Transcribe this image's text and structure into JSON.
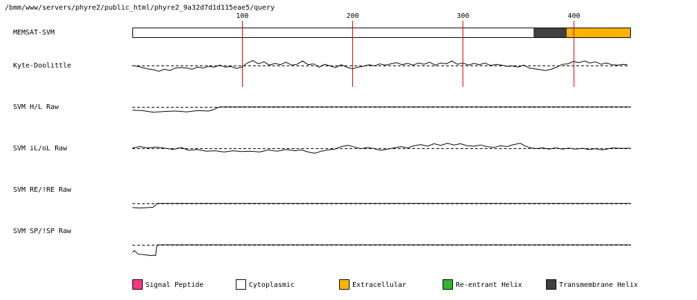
{
  "header": {
    "path": "/bmm/www/servers/phyre2/public_html/phyre2_9a32d7d1d115eae5/query"
  },
  "chart_data": {
    "type": "line",
    "x_axis": {
      "min": 1,
      "max": 452,
      "ticks": [
        100,
        200,
        300,
        400
      ],
      "tick_labels": [
        "100",
        "200",
        "300",
        "400"
      ]
    },
    "tracks": [
      {
        "label": "MEMSAT-SVM",
        "kind": "segments",
        "segments": [
          {
            "start": 1,
            "end": 364,
            "class": "Cytoplasmic"
          },
          {
            "start": 364,
            "end": 394,
            "class": "Transmembrane Helix"
          },
          {
            "start": 394,
            "end": 452,
            "class": "Extracellular"
          }
        ]
      },
      {
        "label": "Kyte-Doolittle",
        "kind": "profile",
        "profile": [
          [
            1,
            0
          ],
          [
            6,
            -0.1
          ],
          [
            10,
            -0.25
          ],
          [
            15,
            -0.4
          ],
          [
            20,
            -0.5
          ],
          [
            25,
            -0.7
          ],
          [
            30,
            -0.45
          ],
          [
            35,
            -0.6
          ],
          [
            40,
            -0.3
          ],
          [
            45,
            -0.25
          ],
          [
            50,
            -0.3
          ],
          [
            55,
            -0.45
          ],
          [
            60,
            -0.2
          ],
          [
            65,
            -0.3
          ],
          [
            70,
            -0.1
          ],
          [
            75,
            -0.2
          ],
          [
            80,
            0.05
          ],
          [
            85,
            -0.2
          ],
          [
            90,
            -0.1
          ],
          [
            95,
            -0.35
          ],
          [
            100,
            -0.2
          ],
          [
            105,
            0.3
          ],
          [
            110,
            0.6
          ],
          [
            115,
            0.2
          ],
          [
            120,
            0.45
          ],
          [
            125,
            0.05
          ],
          [
            130,
            0.25
          ],
          [
            135,
            0.1
          ],
          [
            140,
            0.4
          ],
          [
            145,
            0.05
          ],
          [
            150,
            0.15
          ],
          [
            155,
            0.55
          ],
          [
            160,
            0.1
          ],
          [
            165,
            0.2
          ],
          [
            170,
            -0.2
          ],
          [
            175,
            0.15
          ],
          [
            180,
            -0.05
          ],
          [
            185,
            -0.25
          ],
          [
            190,
            0.1
          ],
          [
            195,
            -0.2
          ],
          [
            200,
            -0.4
          ],
          [
            205,
            -0.2
          ],
          [
            210,
            -0.1
          ],
          [
            215,
            0.1
          ],
          [
            220,
            -0.05
          ],
          [
            225,
            0.2
          ],
          [
            230,
            0.05
          ],
          [
            235,
            0.2
          ],
          [
            240,
            0.35
          ],
          [
            245,
            0.1
          ],
          [
            250,
            0.25
          ],
          [
            255,
            0.05
          ],
          [
            260,
            0.3
          ],
          [
            265,
            0.15
          ],
          [
            270,
            0.4
          ],
          [
            275,
            0.05
          ],
          [
            280,
            0.3
          ],
          [
            285,
            0.2
          ],
          [
            290,
            0.55
          ],
          [
            295,
            0.15
          ],
          [
            300,
            0.3
          ],
          [
            305,
            0.05
          ],
          [
            310,
            0.25
          ],
          [
            315,
            0.1
          ],
          [
            320,
            0.3
          ],
          [
            325,
            0
          ],
          [
            330,
            0.15
          ],
          [
            335,
            0.05
          ],
          [
            340,
            -0.1
          ],
          [
            345,
            -0.05
          ],
          [
            350,
            -0.2
          ],
          [
            355,
            0.05
          ],
          [
            360,
            -0.3
          ],
          [
            365,
            -0.4
          ],
          [
            370,
            -0.5
          ],
          [
            375,
            -0.6
          ],
          [
            380,
            -0.45
          ],
          [
            385,
            -0.2
          ],
          [
            390,
            0.15
          ],
          [
            395,
            0.2
          ],
          [
            400,
            0.5
          ],
          [
            405,
            0.35
          ],
          [
            410,
            0.55
          ],
          [
            415,
            0.3
          ],
          [
            420,
            0.45
          ],
          [
            425,
            0.15
          ],
          [
            430,
            0.3
          ],
          [
            435,
            0.1
          ],
          [
            440,
            0.05
          ],
          [
            445,
            0.15
          ],
          [
            449,
            0.1
          ]
        ]
      },
      {
        "label": "SVM H/L Raw",
        "kind": "profile",
        "profile": [
          [
            1,
            -0.4
          ],
          [
            10,
            -0.45
          ],
          [
            20,
            -0.65
          ],
          [
            30,
            -0.55
          ],
          [
            40,
            -0.5
          ],
          [
            50,
            -0.6
          ],
          [
            60,
            -0.45
          ],
          [
            70,
            -0.5
          ],
          [
            75,
            -0.3
          ],
          [
            78,
            -0.1
          ],
          [
            80,
            0
          ],
          [
            452,
            0
          ]
        ]
      },
      {
        "label": "SVM iL/oL Raw",
        "kind": "profile",
        "profile": [
          [
            1,
            0.05
          ],
          [
            8,
            0.2
          ],
          [
            15,
            0.05
          ],
          [
            22,
            0.15
          ],
          [
            30,
            0.02
          ],
          [
            38,
            -0.15
          ],
          [
            45,
            0.1
          ],
          [
            52,
            -0.25
          ],
          [
            60,
            -0.15
          ],
          [
            68,
            -0.35
          ],
          [
            76,
            -0.3
          ],
          [
            84,
            -0.45
          ],
          [
            92,
            -0.3
          ],
          [
            100,
            -0.4
          ],
          [
            108,
            -0.35
          ],
          [
            116,
            -0.45
          ],
          [
            124,
            -0.2
          ],
          [
            132,
            -0.35
          ],
          [
            140,
            -0.15
          ],
          [
            148,
            -0.3
          ],
          [
            154,
            -0.2
          ],
          [
            160,
            -0.45
          ],
          [
            166,
            -0.6
          ],
          [
            172,
            -0.35
          ],
          [
            178,
            -0.2
          ],
          [
            184,
            -0.1
          ],
          [
            190,
            0.2
          ],
          [
            196,
            0.35
          ],
          [
            202,
            0.15
          ],
          [
            208,
            -0.05
          ],
          [
            214,
            0.1
          ],
          [
            220,
            -0.05
          ],
          [
            226,
            -0.25
          ],
          [
            232,
            -0.1
          ],
          [
            238,
            0.05
          ],
          [
            244,
            0.2
          ],
          [
            250,
            0.05
          ],
          [
            256,
            0.3
          ],
          [
            262,
            0.45
          ],
          [
            268,
            0.25
          ],
          [
            274,
            0.55
          ],
          [
            280,
            0.35
          ],
          [
            286,
            0.6
          ],
          [
            292,
            0.4
          ],
          [
            298,
            0.55
          ],
          [
            304,
            0.3
          ],
          [
            310,
            0.25
          ],
          [
            316,
            0.4
          ],
          [
            322,
            0.2
          ],
          [
            328,
            0.1
          ],
          [
            334,
            0.3
          ],
          [
            340,
            0.2
          ],
          [
            346,
            0.45
          ],
          [
            352,
            0.6
          ],
          [
            356,
            0.3
          ],
          [
            360,
            0.1
          ],
          [
            366,
            -0.05
          ],
          [
            372,
            0.05
          ],
          [
            378,
            -0.1
          ],
          [
            384,
            0.05
          ],
          [
            390,
            -0.1
          ],
          [
            396,
            0.02
          ],
          [
            402,
            -0.1
          ],
          [
            408,
            0
          ],
          [
            414,
            -0.15
          ],
          [
            420,
            -0.05
          ],
          [
            426,
            -0.2
          ],
          [
            432,
            -0.05
          ],
          [
            436,
            0.05
          ],
          [
            440,
            0
          ],
          [
            452,
            0
          ]
        ]
      },
      {
        "label": "SVM RE/!RE Raw",
        "kind": "profile",
        "profile": [
          [
            1,
            -0.5
          ],
          [
            8,
            -0.55
          ],
          [
            15,
            -0.5
          ],
          [
            20,
            -0.45
          ],
          [
            22,
            -0.2
          ],
          [
            23,
            0
          ],
          [
            452,
            0
          ]
        ]
      },
      {
        "label": "SVM SP/!SP Raw",
        "kind": "profile",
        "profile": [
          [
            1,
            -0.9
          ],
          [
            3,
            -0.7
          ],
          [
            6,
            -1.1
          ],
          [
            12,
            -1.2
          ],
          [
            18,
            -1.3
          ],
          [
            20,
            -1.25
          ],
          [
            22,
            -1.3
          ],
          [
            23,
            -0.2
          ],
          [
            24,
            0
          ],
          [
            452,
            0
          ]
        ]
      }
    ],
    "legend": [
      {
        "label": "Signal Peptide",
        "color": "#ff3385"
      },
      {
        "label": "Cytoplasmic",
        "color": "#ffffff"
      },
      {
        "label": "Extracellular",
        "color": "#ffb300"
      },
      {
        "label": "Re-entrant Helix",
        "color": "#2eb82e"
      },
      {
        "label": "Transmembrane Helix",
        "color": "#404040"
      }
    ],
    "colors": {
      "marker_line": "#dd0000",
      "trace": "#000000",
      "baseline": "#000000"
    }
  }
}
